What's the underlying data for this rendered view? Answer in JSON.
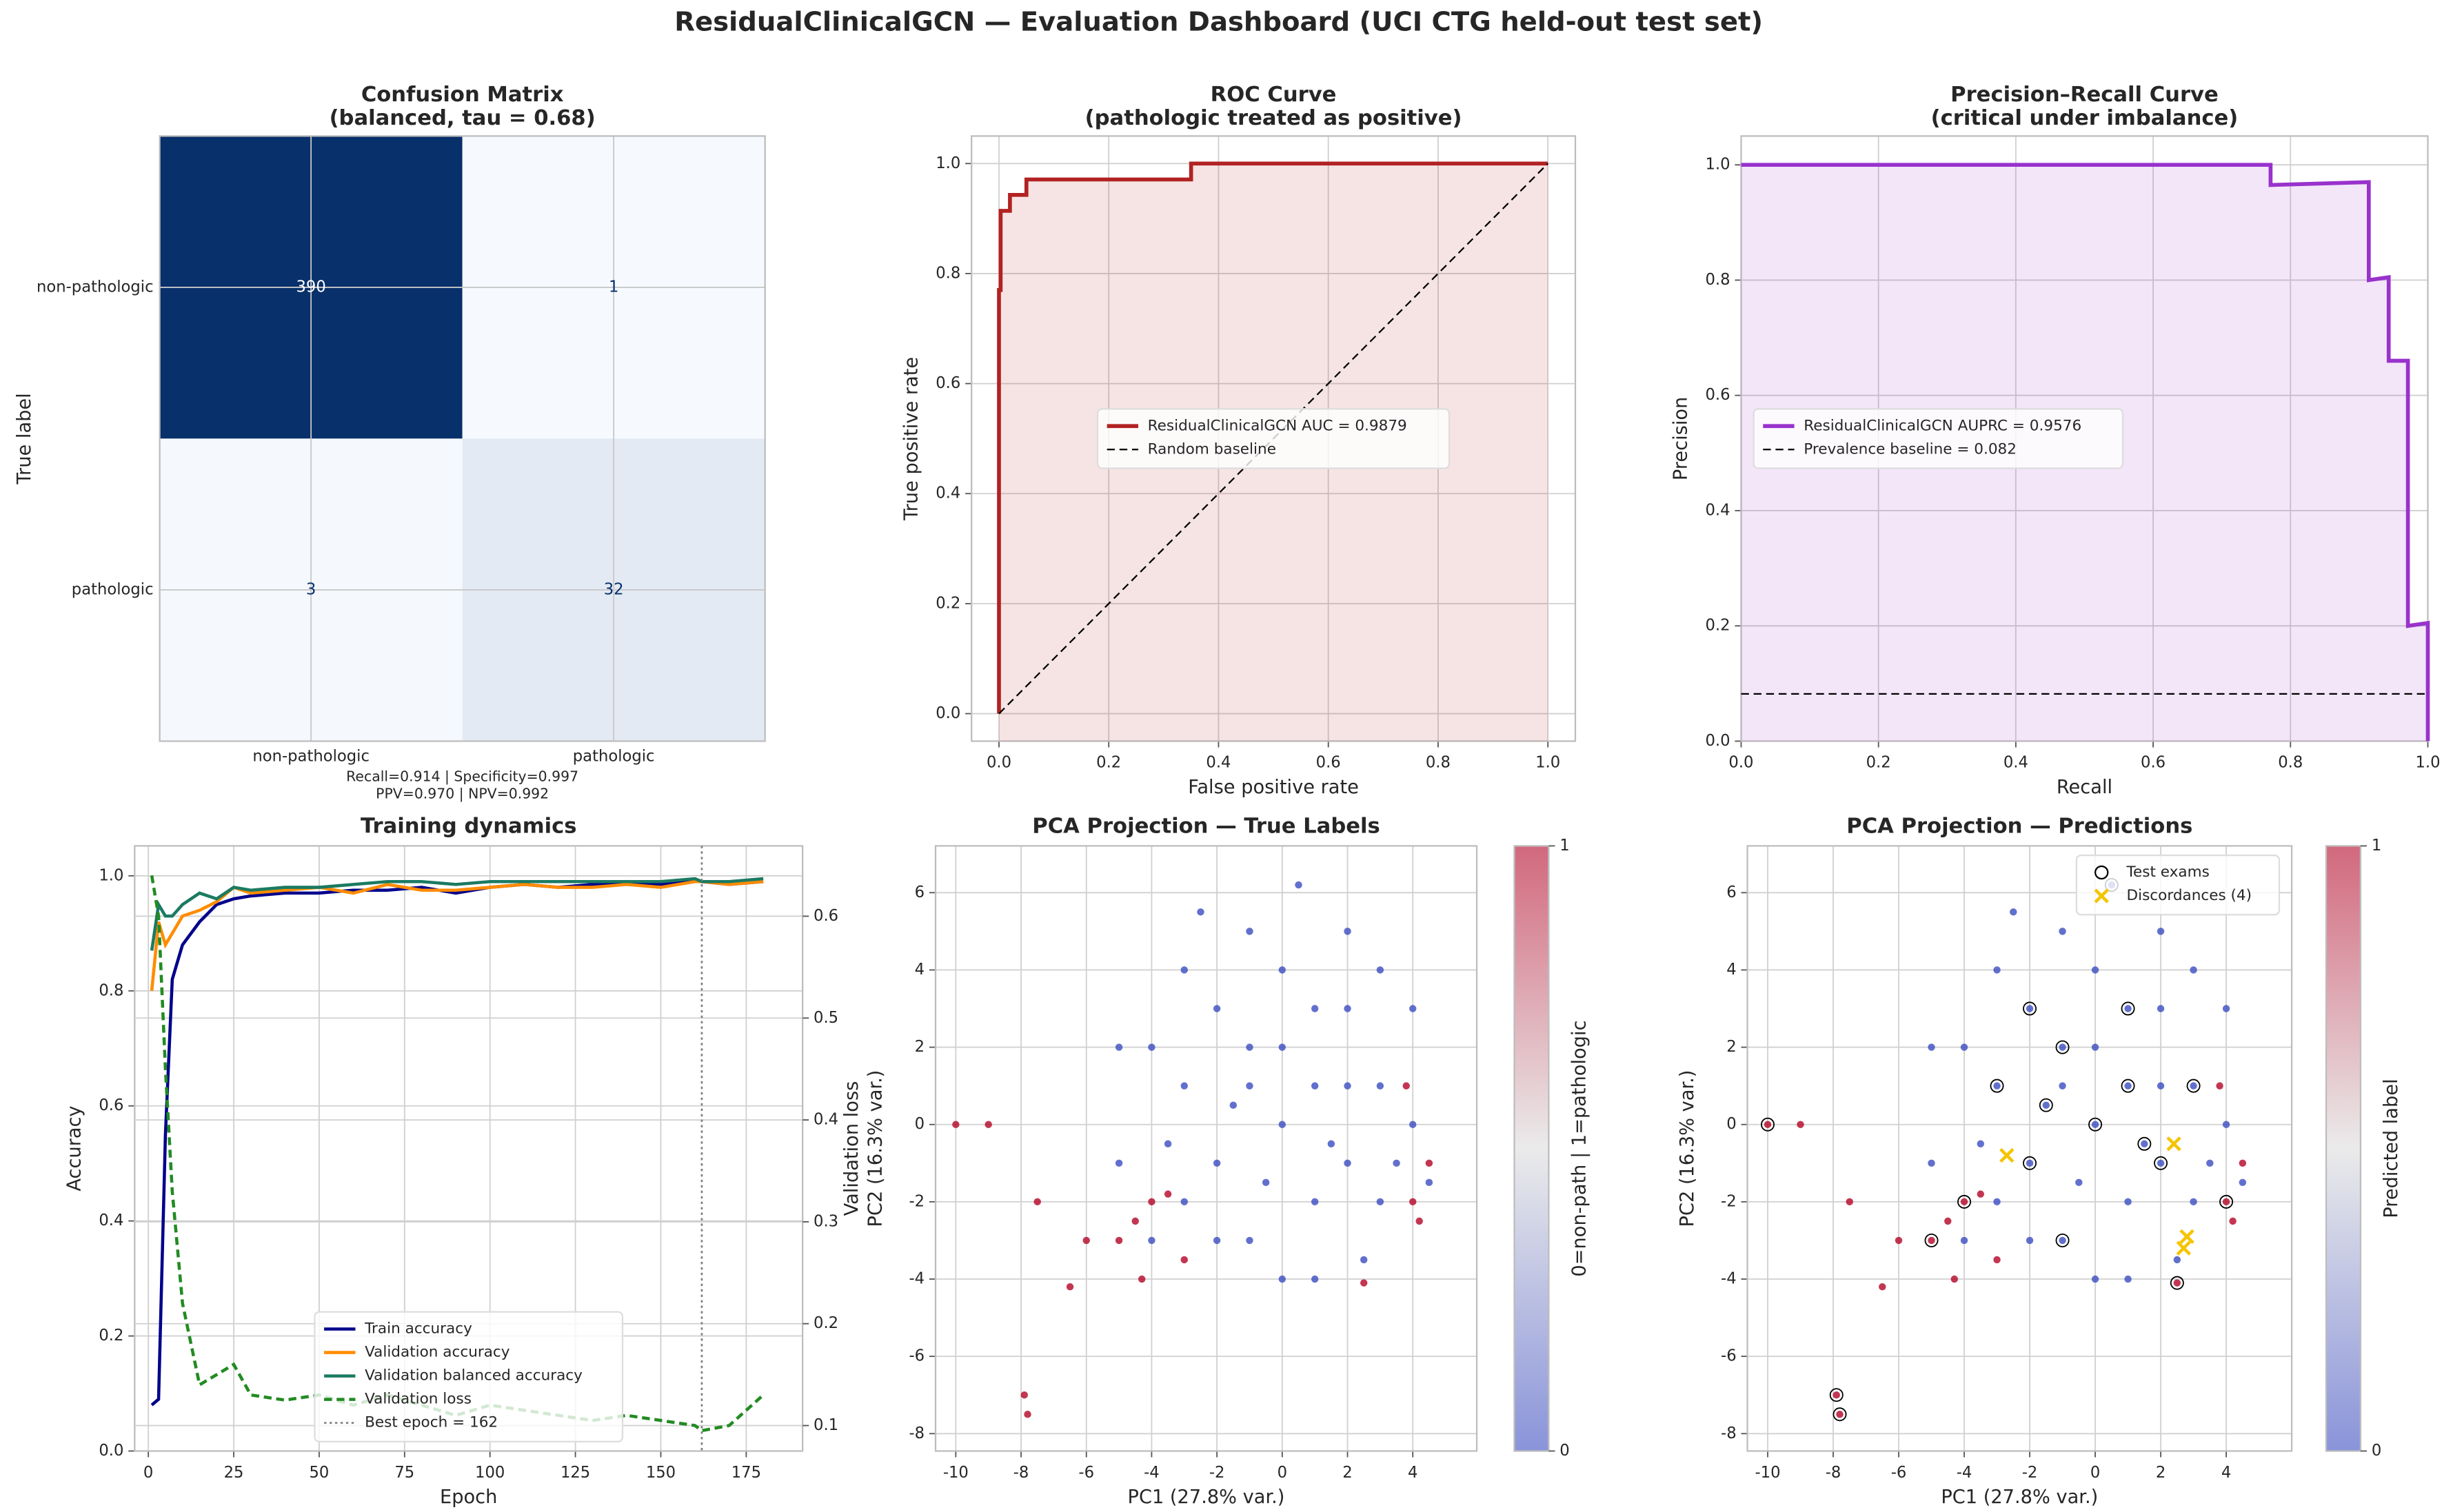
{
  "title": "ResidualClinicalGCN — Evaluation Dashboard (UCI CTG held-out test set)",
  "chart_data": [
    {
      "type": "heatmap",
      "title": "Confusion Matrix",
      "subtitle": "(balanced, tau = 0.68)",
      "ylabel": "True label",
      "categories": [
        "non-pathologic",
        "pathologic"
      ],
      "y_categories": [
        "non-pathologic",
        "pathologic"
      ],
      "values": [
        [
          390,
          1
        ],
        [
          3,
          32
        ]
      ],
      "colormap": [
        "#f7fbff",
        "#08306b"
      ],
      "grid": true,
      "notes": [
        "Recall=0.914 | Specificity=0.997",
        "PPV=0.970 | NPV=0.992"
      ]
    },
    {
      "type": "line",
      "title": "ROC Curve",
      "subtitle": "(pathologic treated as positive)",
      "xlabel": "False positive rate",
      "ylabel": "True positive rate",
      "xlim": [
        -0.05,
        1.05
      ],
      "ylim": [
        -0.05,
        1.05
      ],
      "xticks": [
        {
          "value": 0,
          "label": "0.0"
        },
        0.2,
        0.4,
        0.6,
        0.8,
        {
          "value": 1,
          "label": "1.0"
        }
      ],
      "yticks": [
        {
          "value": 0,
          "label": "0.0"
        },
        0.2,
        0.4,
        0.6,
        0.8,
        {
          "value": 1,
          "label": "1.0"
        }
      ],
      "grid": true,
      "legend_loc": "center",
      "series": [
        {
          "name": "ResidualClinicalGCN  AUC = 0.9879",
          "color": "#b22222",
          "width": 2.5,
          "fill": "#b22222",
          "x": [
            0,
            0,
            0.003,
            0.003,
            0.02,
            0.02,
            0.05,
            0.05,
            0.35,
            0.35,
            1
          ],
          "values": [
            0,
            0.77,
            0.77,
            0.914,
            0.914,
            0.943,
            0.943,
            0.971,
            0.971,
            1,
            1
          ]
        },
        {
          "name": "Random baseline",
          "color": "#000000",
          "width": 1,
          "dash": "dashed",
          "x": [
            0,
            1
          ],
          "values": [
            0,
            1
          ]
        }
      ]
    },
    {
      "type": "line",
      "title": "Precision–Recall Curve",
      "subtitle": "(critical under imbalance)",
      "xlabel": "Recall",
      "ylabel": "Precision",
      "xlim": [
        0,
        1
      ],
      "ylim": [
        0,
        1.05
      ],
      "xticks": [
        {
          "value": 0,
          "label": "0.0"
        },
        0.2,
        0.4,
        0.6,
        0.8,
        {
          "value": 1,
          "label": "1.0"
        }
      ],
      "yticks": [
        {
          "value": 0,
          "label": "0.0"
        },
        0.2,
        0.4,
        0.6,
        0.8,
        {
          "value": 1,
          "label": "1.0"
        }
      ],
      "grid": true,
      "legend_loc": "center left",
      "series": [
        {
          "name": "ResidualClinicalGCN  AUPRC = 0.9576",
          "color": "#9932cc",
          "width": 2.5,
          "fill": "#9932cc",
          "x": [
            0,
            0.771,
            0.771,
            0.914,
            0.914,
            0.943,
            0.943,
            0.971,
            0.971,
            1,
            1
          ],
          "values": [
            1,
            1,
            0.965,
            0.97,
            0.8,
            0.805,
            0.66,
            0.66,
            0.2,
            0.205,
            0
          ]
        },
        {
          "name": "Prevalence baseline = 0.082",
          "color": "#000000",
          "width": 1,
          "dash": "dashed",
          "x": [
            0,
            1
          ],
          "values": [
            0.082,
            0.082
          ]
        }
      ]
    },
    {
      "type": "line",
      "title": "Training dynamics",
      "xlabel": "Epoch",
      "ylabel": "Accuracy",
      "y2label": "Validation loss",
      "xlim": [
        -4,
        191.5
      ],
      "ylim": [
        0,
        1.052
      ],
      "y2lim": [
        0.075,
        0.669
      ],
      "xticks": [
        0,
        25,
        50,
        75,
        100,
        125,
        150,
        175
      ],
      "yticks": [
        {
          "value": 0,
          "label": "0.0"
        },
        0.2,
        0.4,
        0.6,
        0.8,
        {
          "value": 1,
          "label": "1.0"
        }
      ],
      "y2ticks": [
        0.1,
        0.2,
        0.3,
        0.4,
        0.5,
        0.6
      ],
      "grid": true,
      "legend_loc": "lower center",
      "series": [
        {
          "name": "Train accuracy",
          "color": "#00008b",
          "width": 2,
          "x": [
            1,
            3,
            5,
            7,
            10,
            15,
            20,
            25,
            30,
            40,
            50,
            60,
            70,
            80,
            90,
            100,
            110,
            120,
            130,
            140,
            150,
            160,
            162,
            170,
            180
          ],
          "values": [
            0.08,
            0.09,
            0.55,
            0.82,
            0.88,
            0.92,
            0.95,
            0.96,
            0.965,
            0.97,
            0.97,
            0.975,
            0.975,
            0.98,
            0.97,
            0.98,
            0.985,
            0.98,
            0.985,
            0.99,
            0.985,
            0.99,
            0.99,
            0.985,
            0.99
          ]
        },
        {
          "name": "Validation accuracy",
          "color": "#ff8c00",
          "width": 2,
          "x": [
            1,
            3,
            5,
            7,
            10,
            15,
            20,
            25,
            30,
            40,
            50,
            60,
            70,
            80,
            90,
            100,
            110,
            120,
            130,
            140,
            150,
            160,
            162,
            170,
            180
          ],
          "values": [
            0.8,
            0.92,
            0.88,
            0.9,
            0.93,
            0.94,
            0.955,
            0.98,
            0.97,
            0.975,
            0.98,
            0.97,
            0.985,
            0.975,
            0.975,
            0.98,
            0.985,
            0.98,
            0.98,
            0.985,
            0.98,
            0.99,
            0.99,
            0.985,
            0.99
          ]
        },
        {
          "name": "Validation balanced accuracy",
          "color": "#1b7a62",
          "width": 2,
          "x": [
            1,
            3,
            5,
            7,
            10,
            15,
            20,
            25,
            30,
            40,
            50,
            60,
            70,
            80,
            90,
            100,
            110,
            120,
            130,
            140,
            150,
            160,
            162,
            170,
            180
          ],
          "values": [
            0.87,
            0.95,
            0.93,
            0.93,
            0.95,
            0.97,
            0.96,
            0.98,
            0.975,
            0.98,
            0.98,
            0.985,
            0.99,
            0.99,
            0.985,
            0.99,
            0.99,
            0.99,
            0.99,
            0.99,
            0.99,
            0.995,
            0.99,
            0.99,
            0.995
          ]
        },
        {
          "name": "Validation loss",
          "color": "#228b22",
          "width": 2,
          "dash": "dashed",
          "axis": "y2",
          "x": [
            1,
            3,
            5,
            7,
            10,
            15,
            20,
            25,
            30,
            40,
            50,
            60,
            70,
            80,
            90,
            100,
            110,
            120,
            130,
            140,
            150,
            160,
            162,
            170,
            180
          ],
          "values": [
            0.64,
            0.6,
            0.45,
            0.33,
            0.22,
            0.14,
            0.15,
            0.16,
            0.13,
            0.125,
            0.13,
            0.12,
            0.13,
            0.12,
            0.11,
            0.12,
            0.115,
            0.11,
            0.105,
            0.11,
            0.105,
            0.1,
            0.095,
            0.1,
            0.13
          ]
        }
      ],
      "vlines": [
        {
          "name": "Best epoch = 162",
          "x": 162,
          "color": "#808080",
          "dash": "dotted"
        }
      ]
    },
    {
      "type": "scatter",
      "title": "PCA Projection — True Labels",
      "xlabel": "PC1 (27.8% var.)",
      "ylabel": "PC2 (16.3% var.)",
      "xlim": [
        -10.62,
        5.96
      ],
      "ylim": [
        -8.45,
        7.21
      ],
      "xticks": [
        -10,
        -8,
        -6,
        -4,
        -2,
        0,
        2,
        4
      ],
      "yticks": [
        -8,
        -6,
        -4,
        -2,
        0,
        2,
        4,
        6
      ],
      "grid": true,
      "colormap": [
        "#3b4cc0",
        "#dddddd",
        "#b40426"
      ],
      "clim": [
        0,
        1
      ],
      "colorbar_label": "0=non-path | 1=pathologic",
      "colorbar_ticks": [
        0,
        1
      ],
      "x": [
        0,
        1,
        -1,
        2,
        -2,
        3,
        -3,
        1,
        -1,
        0,
        2,
        -2,
        3,
        -3,
        1,
        -1,
        4,
        -4,
        0,
        2,
        -1,
        -3,
        4,
        -5,
        -5,
        1,
        3,
        -2,
        2,
        0,
        -0.5,
        1.5,
        3.5,
        -3.5,
        0.5,
        -2.5,
        4.5,
        -4,
        2.5,
        -1.5,
        -4,
        -4.5,
        -3.5,
        -5,
        -6,
        -3,
        4,
        4.2,
        4.5,
        3.8,
        -10,
        -9,
        -7.9,
        -7.8,
        -7.5,
        2.5,
        -4.3,
        -6.5
      ],
      "values": [
        0,
        1,
        2,
        -1,
        -1,
        1,
        1,
        3,
        -3,
        4,
        3,
        3,
        -2,
        -2,
        -2,
        1,
        0,
        2,
        -4,
        5,
        5,
        4,
        3,
        2,
        -1,
        -4,
        4,
        -3,
        1,
        2,
        -1.5,
        -0.5,
        -1,
        -0.5,
        6.2,
        5.5,
        -1.5,
        -3,
        -3.5,
        0.5,
        -2,
        -2.5,
        -1.8,
        -3,
        -3,
        -3.5,
        -2,
        -2.5,
        -1,
        1,
        0,
        0,
        -7,
        -7.5,
        -2,
        -4.1,
        -4,
        -4.2
      ],
      "c": [
        0,
        0,
        0,
        0,
        0,
        0,
        0,
        0,
        0,
        0,
        0,
        0,
        0,
        0,
        0,
        0,
        0,
        0,
        0,
        0,
        0,
        0,
        0,
        0,
        0,
        0,
        0,
        0,
        0,
        0,
        0,
        0,
        0,
        0,
        0,
        0,
        0,
        0,
        0,
        0,
        1,
        1,
        1,
        1,
        1,
        1,
        1,
        1,
        1,
        1,
        1,
        1,
        1,
        1,
        1,
        1,
        1,
        1
      ]
    },
    {
      "type": "scatter",
      "title": "PCA Projection — Predictions",
      "xlabel": "PC1 (27.8% var.)",
      "ylabel": "PC2 (16.3% var.)",
      "xlim": [
        -10.62,
        6.0
      ],
      "ylim": [
        -8.45,
        7.21
      ],
      "xticks": [
        -10,
        -8,
        -6,
        -4,
        -2,
        0,
        2,
        4
      ],
      "yticks": [
        -8,
        -6,
        -4,
        -2,
        0,
        2,
        4,
        6
      ],
      "grid": true,
      "colormap": [
        "#3b4cc0",
        "#dddddd",
        "#b40426"
      ],
      "clim": [
        0,
        1
      ],
      "colorbar_label": "Predicted label",
      "colorbar_ticks": [
        0,
        1
      ],
      "legend_loc": "upper right",
      "x": [
        0,
        1,
        -1,
        2,
        -2,
        3,
        -3,
        1,
        -1,
        0,
        2,
        -2,
        3,
        -3,
        1,
        -1,
        4,
        -4,
        0,
        2,
        -1,
        -3,
        4,
        -5,
        -5,
        1,
        3,
        -2,
        2,
        0,
        -0.5,
        1.5,
        3.5,
        -3.5,
        0.5,
        -2.5,
        4.5,
        -4,
        2.5,
        -1.5,
        -4,
        -4.5,
        -3.5,
        -5,
        -6,
        -3,
        4,
        4.2,
        4.5,
        3.8,
        -10,
        -9,
        -7.9,
        -7.8,
        -7.5,
        2.5,
        -4.3,
        -6.5
      ],
      "values": [
        0,
        1,
        2,
        -1,
        -1,
        1,
        1,
        3,
        -3,
        4,
        3,
        3,
        -2,
        -2,
        -2,
        1,
        0,
        2,
        -4,
        5,
        5,
        4,
        3,
        2,
        -1,
        -4,
        4,
        -3,
        1,
        2,
        -1.5,
        -0.5,
        -1,
        -0.5,
        6.2,
        5.5,
        -1.5,
        -3,
        -3.5,
        0.5,
        -2,
        -2.5,
        -1.8,
        -3,
        -3,
        -3.5,
        -2,
        -2.5,
        -1,
        1,
        0,
        0,
        -7,
        -7.5,
        -2,
        -4.1,
        -4,
        -4.2
      ],
      "c": [
        0,
        0,
        0,
        0,
        0,
        0,
        0,
        0,
        0,
        0,
        0,
        0,
        0,
        0,
        0,
        0,
        0,
        0,
        0,
        0,
        0,
        0,
        0,
        0,
        0,
        0,
        0,
        0,
        0,
        0,
        0,
        0,
        0,
        0,
        0,
        0,
        0,
        0,
        0,
        0,
        1,
        1,
        1,
        1,
        1,
        1,
        1,
        1,
        1,
        1,
        1,
        1,
        1,
        1,
        1,
        1,
        1,
        1
      ],
      "series": [
        {
          "name": "Test exams",
          "marker": "circle-open",
          "color": "#000000",
          "x": [
            0,
            1,
            -1,
            2,
            -2,
            3,
            1,
            -1,
            -2,
            -4,
            -5,
            4,
            -10,
            -7.9,
            -7.8,
            2.5,
            -3,
            0.5,
            1.5,
            -1.5
          ],
          "values": [
            0,
            1,
            2,
            -1,
            -1,
            1,
            3,
            -3,
            3,
            -2,
            -3,
            -2,
            0,
            -7,
            -7.5,
            -4.1,
            1,
            6.2,
            -0.5,
            0.5
          ]
        },
        {
          "name": "Discordances (4)",
          "marker": "x",
          "color": "#f5c400",
          "x": [
            -2.7,
            2.4,
            2.7,
            2.8
          ],
          "values": [
            -0.8,
            -0.5,
            -3.2,
            -2.9
          ]
        }
      ]
    }
  ]
}
